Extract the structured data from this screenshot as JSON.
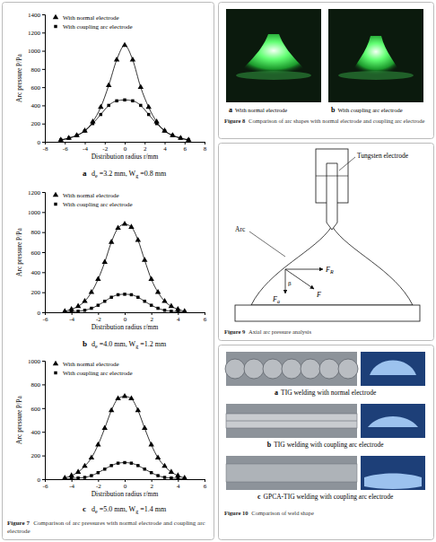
{
  "chart_data": [
    {
      "type": "line",
      "caption": {
        "letter": "a",
        "parts": [
          {
            "text": "d"
          },
          {
            "text": "e",
            "sub": true
          },
          {
            "text": " =3.2 mm, "
          },
          {
            "text": "W"
          },
          {
            "text": "g",
            "sub": true
          },
          {
            "text": " =0.8 mm"
          }
        ]
      },
      "x_label": "Distribution radius r/mm",
      "y_label": "Arc pressure P/Pa",
      "xlim": [
        -8,
        8
      ],
      "xticks": [
        -8,
        -6,
        -4,
        -2,
        0,
        2,
        4,
        6,
        8
      ],
      "ylim": [
        0,
        1400
      ],
      "yticks": [
        0,
        200,
        400,
        600,
        800,
        1000,
        1200,
        1400
      ],
      "legend": "upper left",
      "x": [
        -6.4,
        -5.6,
        -4.8,
        -4.0,
        -3.2,
        -2.4,
        -1.6,
        -0.8,
        0,
        0.8,
        1.6,
        2.4,
        3.2,
        4.0,
        4.8,
        5.6,
        6.4
      ],
      "series": [
        {
          "name": "With normal electrode",
          "color": "#000000",
          "marker": "triangle",
          "values": [
            20,
            40,
            70,
            120,
            220,
            380,
            620,
            900,
            1060,
            900,
            600,
            380,
            220,
            120,
            70,
            40,
            20
          ]
        },
        {
          "name": "With coupling arc electrode",
          "color": "#000000",
          "marker": "square",
          "values": [
            20,
            40,
            70,
            120,
            200,
            300,
            400,
            450,
            460,
            450,
            400,
            300,
            200,
            120,
            70,
            40,
            20
          ]
        }
      ]
    },
    {
      "type": "line",
      "caption": {
        "letter": "b",
        "parts": [
          {
            "text": "d"
          },
          {
            "text": "e",
            "sub": true
          },
          {
            "text": " =4.0 mm, "
          },
          {
            "text": "W"
          },
          {
            "text": "g",
            "sub": true
          },
          {
            "text": " =1.2 mm"
          }
        ]
      },
      "x_label": "Distribution radius r/mm",
      "y_label": "Arc pressure P/Pa",
      "xlim": [
        -6,
        6
      ],
      "xticks": [
        -6,
        -4,
        -2,
        0,
        2,
        4,
        6
      ],
      "ylim": [
        0,
        1200
      ],
      "yticks": [
        0,
        200,
        400,
        600,
        800,
        1000,
        1200
      ],
      "legend": "upper left",
      "x": [
        -4.5,
        -4.0,
        -3.5,
        -3.0,
        -2.5,
        -2.0,
        -1.5,
        -1.0,
        -0.5,
        0,
        0.5,
        1.0,
        1.5,
        2.0,
        2.5,
        3.0,
        3.5,
        4.0,
        4.5
      ],
      "series": [
        {
          "name": "With normal electrode",
          "color": "#000000",
          "marker": "triangle",
          "values": [
            10,
            30,
            60,
            110,
            200,
            330,
            500,
            700,
            840,
            880,
            850,
            720,
            520,
            330,
            200,
            110,
            60,
            30,
            10
          ]
        },
        {
          "name": "With coupling arc electrode",
          "color": "#000000",
          "marker": "square",
          "values": [
            0,
            5,
            10,
            20,
            40,
            70,
            110,
            150,
            175,
            180,
            175,
            150,
            110,
            70,
            40,
            20,
            10,
            5,
            0
          ]
        }
      ]
    },
    {
      "type": "line",
      "caption": {
        "letter": "c",
        "parts": [
          {
            "text": "d"
          },
          {
            "text": "e",
            "sub": true
          },
          {
            "text": " =5.0 mm, "
          },
          {
            "text": "W"
          },
          {
            "text": "g",
            "sub": true
          },
          {
            "text": " =1.4 mm"
          }
        ]
      },
      "x_label": "Distribution radius r/mm",
      "y_label": "Arc pressure P/Pa",
      "xlim": [
        -6,
        6
      ],
      "xticks": [
        -6,
        -4,
        -2,
        0,
        2,
        4,
        6
      ],
      "ylim": [
        0,
        1000
      ],
      "yticks": [
        0,
        200,
        400,
        600,
        800,
        1000
      ],
      "legend": "upper left",
      "x": [
        -4.5,
        -4.0,
        -3.5,
        -3.0,
        -2.5,
        -2.0,
        -1.5,
        -1.0,
        -0.5,
        0,
        0.5,
        1.0,
        1.5,
        2.0,
        2.5,
        3.0,
        3.5,
        4.0,
        4.5
      ],
      "series": [
        {
          "name": "With normal electrode",
          "color": "#000000",
          "marker": "triangle",
          "values": [
            10,
            30,
            60,
            110,
            180,
            290,
            430,
            580,
            680,
            700,
            680,
            580,
            430,
            290,
            180,
            110,
            60,
            30,
            10
          ]
        },
        {
          "name": "With coupling arc electrode",
          "color": "#000000",
          "marker": "square",
          "values": [
            0,
            5,
            10,
            15,
            30,
            55,
            85,
            115,
            135,
            140,
            135,
            115,
            85,
            55,
            30,
            15,
            10,
            5,
            0
          ]
        }
      ]
    }
  ],
  "figure7": {
    "label": "Figure 7",
    "caption": "Comparison of arc pressures with normal electrode and coupling arc electrode"
  },
  "figure8": {
    "label": "Figure 8",
    "caption": "Comparison of arc shapes with normal electrode and coupling arc electrode",
    "panels": [
      {
        "letter": "a",
        "text": "With normal electrode"
      },
      {
        "letter": "b",
        "text": "With coupling arc electrode"
      }
    ]
  },
  "figure9": {
    "label": "Figure 9",
    "caption": "Axial arc pressure analysis",
    "electrode": "Tungsten electrode",
    "arc": "Arc",
    "force_r": {
      "base": "F",
      "sub": "R"
    },
    "force": "F",
    "force_a": {
      "base": "F",
      "sub": "a"
    },
    "angle": "β"
  },
  "figure10": {
    "label": "Figure 10",
    "caption": "Comparison of weld shape",
    "panels": [
      {
        "letter": "a",
        "text": "TIG welding with normal electrode"
      },
      {
        "letter": "b",
        "text": "TIG welding with coupling arc electrode"
      },
      {
        "letter": "c",
        "text": "GPCA-TIG welding with coupling arc electrode"
      }
    ]
  }
}
